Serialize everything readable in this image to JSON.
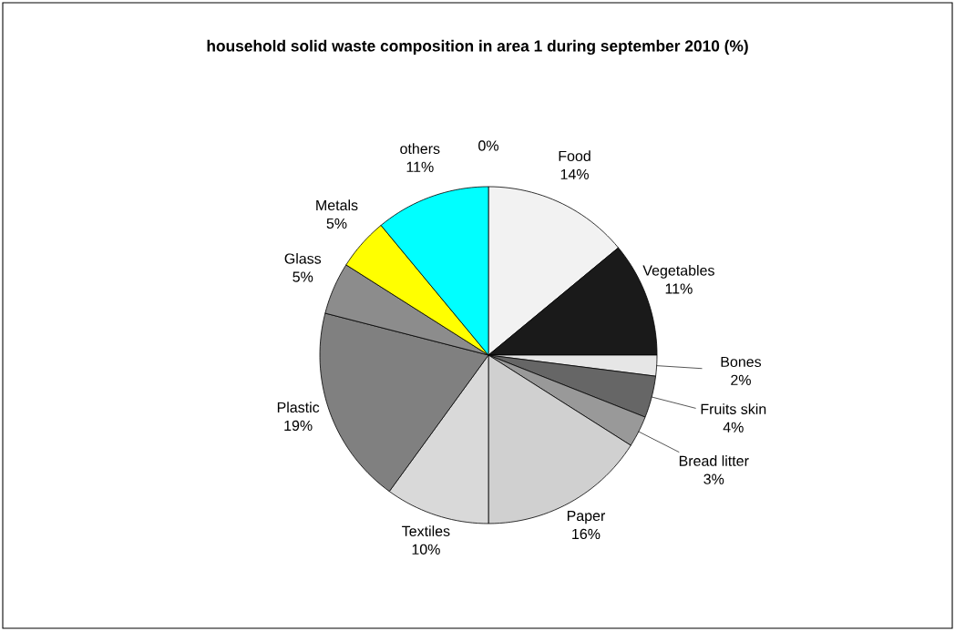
{
  "chart_data": {
    "type": "pie",
    "title": "household solid waste composition in area 1 during september 2010 (%)",
    "categories": [
      "Food",
      "Vegetables",
      "Bones",
      "Fruits skin",
      "Bread litter",
      "Paper",
      "Textiles",
      "Plastic",
      "Glass",
      "Metals",
      "others",
      null
    ],
    "values": [
      14,
      11,
      2,
      4,
      3,
      16,
      10,
      19,
      5,
      5,
      11,
      0
    ],
    "value_labels": [
      "14%",
      "11%",
      "2%",
      "4%",
      "3%",
      "16%",
      "10%",
      "19%",
      "5%",
      "5%",
      "11%",
      "0%"
    ],
    "colors": [
      "#f2f2f2",
      "#1a1a1a",
      "#e6e6e6",
      "#666666",
      "#999999",
      "#d0d0d0",
      "#d9d9d9",
      "#808080",
      "#8c8c8c",
      "#ffff00",
      "#00ffff",
      "#ffffff"
    ]
  }
}
